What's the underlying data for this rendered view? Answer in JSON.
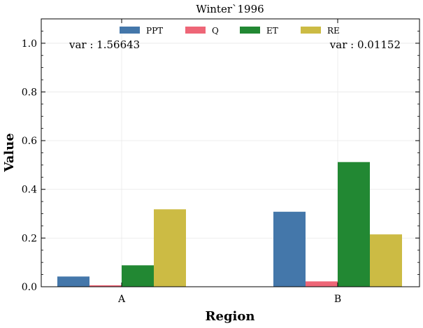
{
  "chart_data": {
    "type": "bar",
    "title": "Winter`1996",
    "xlabel": "Region",
    "ylabel": "Value",
    "categories": [
      "A",
      "B"
    ],
    "ylim": [
      0,
      1.1
    ],
    "yticks": [
      "0.0",
      "0.2",
      "0.4",
      "0.6",
      "0.8",
      "1.0"
    ],
    "grid": true,
    "legend": "top-center",
    "series": [
      {
        "name": "PPT",
        "color": "#4477aa",
        "values": [
          0.042,
          0.308
        ]
      },
      {
        "name": "Q",
        "color": "#ee6677",
        "values": [
          0.006,
          0.022
        ]
      },
      {
        "name": "ET",
        "color": "#228833",
        "values": [
          0.088,
          0.512
        ]
      },
      {
        "name": "RE",
        "color": "#ccbb44",
        "values": [
          0.318,
          0.215
        ]
      }
    ],
    "annotations": [
      "var : 1.56643",
      "var : 0.01152"
    ]
  }
}
